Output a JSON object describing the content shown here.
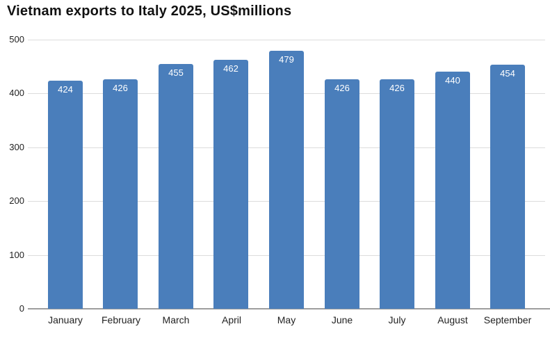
{
  "title": "Vietnam exports to Italy 2025, US$millions",
  "chart_data": {
    "type": "bar",
    "title": "Vietnam exports to Italy 2025, US$millions",
    "categories": [
      "January",
      "February",
      "March",
      "April",
      "May",
      "June",
      "July",
      "August",
      "September"
    ],
    "values": [
      424,
      426,
      455,
      462,
      479,
      426,
      426,
      440,
      454
    ],
    "xlabel": "",
    "ylabel": "",
    "ylim": [
      0,
      500
    ],
    "ytick_step": 100,
    "ytick_labels": [
      "0",
      "100",
      "200",
      "300",
      "400",
      "500"
    ],
    "grid": true,
    "legend": "none",
    "data_labels": "inside-top"
  },
  "colors": {
    "background": "#ffffff",
    "bar": "#4a7ebb",
    "bar_label": "#ffffff",
    "gridline": "#dcdcdc",
    "baseline": "#9e9e9e",
    "axis_text": "#222222",
    "title": "#111111"
  }
}
